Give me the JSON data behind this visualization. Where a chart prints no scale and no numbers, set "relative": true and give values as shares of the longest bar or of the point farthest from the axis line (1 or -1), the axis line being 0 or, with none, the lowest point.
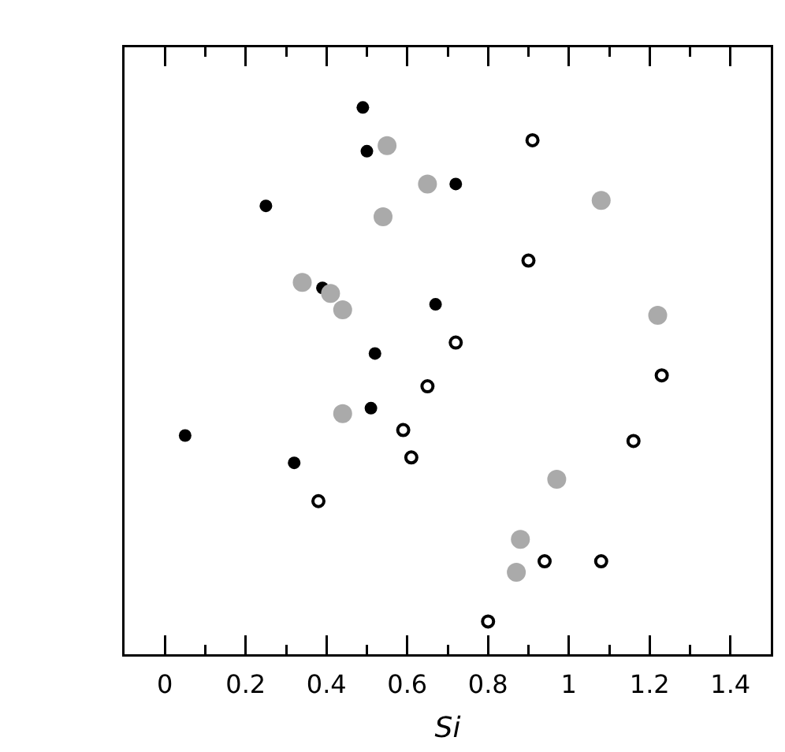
{
  "chart_data": {
    "type": "scatter",
    "xlabel": "Si",
    "relative": true,
    "tick_labels": "x",
    "xlim": [
      -0.1,
      1.5
    ],
    "xticks": [
      0,
      {
        "value": 0.1,
        "label": null
      },
      0.2,
      {
        "value": 0.3,
        "label": null
      },
      0.4,
      {
        "value": 0.5,
        "label": null
      },
      0.6,
      {
        "value": 0.7,
        "label": null
      },
      0.8,
      {
        "value": 0.9,
        "label": null
      },
      1,
      {
        "value": 1.1,
        "label": null
      },
      1.2,
      {
        "value": 1.3,
        "label": null
      },
      1.4
    ],
    "series": [
      {
        "color": "#000000",
        "marker": "circle",
        "x": [
          0.49,
          0.5,
          0.25,
          0.72,
          0.39,
          0.67,
          0.52,
          0.51,
          0.05,
          0.32
        ],
        "values": [
          1.0,
          0.92,
          0.82,
          0.86,
          0.67,
          0.64,
          0.55,
          0.45,
          0.4,
          0.35
        ]
      },
      {
        "color": "#aaaaaa",
        "marker": "circle",
        "x": [
          0.55,
          0.65,
          0.54,
          1.08,
          0.34,
          0.41,
          0.44,
          1.22,
          0.44,
          0.97,
          0.88,
          0.87
        ],
        "values": [
          0.93,
          0.86,
          0.8,
          0.83,
          0.68,
          0.66,
          0.63,
          0.62,
          0.44,
          0.32,
          0.21,
          0.15
        ]
      },
      {
        "color": "#000000",
        "marker": "circle-open",
        "x": [
          0.91,
          0.9,
          0.72,
          0.65,
          1.23,
          0.59,
          0.61,
          1.16,
          0.38,
          0.94,
          1.08,
          0.8
        ],
        "values": [
          0.94,
          0.72,
          0.57,
          0.49,
          0.51,
          0.41,
          0.36,
          0.39,
          0.28,
          0.17,
          0.17,
          0.06
        ]
      }
    ]
  }
}
